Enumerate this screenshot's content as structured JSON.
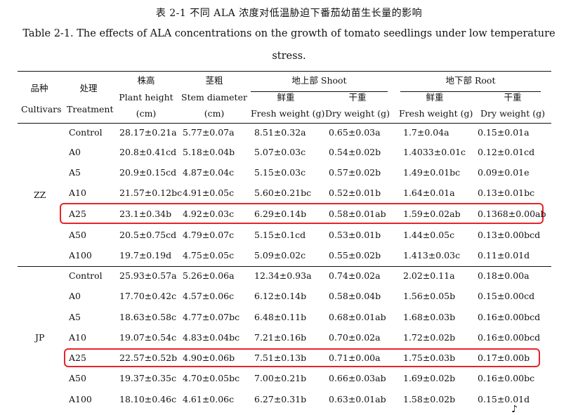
{
  "caption": {
    "chinese": "表  2-1  不同 ALA 浓度对低温胁迫下番茄幼苗生长量的影响",
    "english_line1": "Table 2-1. The effects of ALA concentrations on the growth of tomato seedlings under low temperature",
    "english_line2": "stress."
  },
  "header": {
    "cultivars_cn": "品种",
    "cultivars_en": "Cultivars",
    "treatment_cn": "处理",
    "treatment_en": "Treatment",
    "plant_height_cn": "株高",
    "plant_height_en": "Plant height",
    "plant_height_unit": "(cm)",
    "stem_diameter_cn": "茎粗",
    "stem_diameter_en": "Stem diameter",
    "stem_diameter_unit": "(cm)",
    "shoot_group": "地上部 Shoot",
    "root_group": "地下部 Root",
    "fresh_cn": "鲜重",
    "dry_cn": "干重",
    "shoot_fresh_en": "Fresh weight (g)",
    "shoot_dry_en": "Dry weight (g)",
    "root_fresh_en": "Fresh weight (g)",
    "root_dry_en": "Dry weight (g)"
  },
  "groups": [
    {
      "cultivar": "ZZ",
      "rows": [
        {
          "treatment": "Control",
          "plant_height": "28.17±0.21a",
          "stem_diameter": "5.77±0.07a",
          "shoot_fresh": "8.51±0.32a",
          "shoot_dry": "0.65±0.03a",
          "root_fresh": "1.7±0.04a",
          "root_dry": "0.15±0.01a"
        },
        {
          "treatment": "A0",
          "plant_height": "20.8±0.41cd",
          "stem_diameter": "5.18±0.04b",
          "shoot_fresh": "5.07±0.03c",
          "shoot_dry": "0.54±0.02b",
          "root_fresh": "1.4033±0.01c",
          "root_dry": "0.12±0.01cd"
        },
        {
          "treatment": "A5",
          "plant_height": "20.9±0.15cd",
          "stem_diameter": "4.87±0.04c",
          "shoot_fresh": "5.15±0.03c",
          "shoot_dry": "0.57±0.02b",
          "root_fresh": "1.49±0.01bc",
          "root_dry": "0.09±0.01e"
        },
        {
          "treatment": "A10",
          "plant_height": "21.57±0.12bc",
          "stem_diameter": "4.91±0.05c",
          "shoot_fresh": "5.60±0.21bc",
          "shoot_dry": "0.52±0.01b",
          "root_fresh": "1.64±0.01a",
          "root_dry": "0.13±0.01bc"
        },
        {
          "treatment": "A25",
          "plant_height": "23.1±0.34b",
          "stem_diameter": "4.92±0.03c",
          "shoot_fresh": "6.29±0.14b",
          "shoot_dry": "0.58±0.01ab",
          "root_fresh": "1.59±0.02ab",
          "root_dry": "0.1368±0.00ab"
        },
        {
          "treatment": "A50",
          "plant_height": "20.5±0.75cd",
          "stem_diameter": "4.79±0.07c",
          "shoot_fresh": "5.15±0.1cd",
          "shoot_dry": "0.53±0.01b",
          "root_fresh": "1.44±0.05c",
          "root_dry": "0.13±0.00bcd"
        },
        {
          "treatment": "A100",
          "plant_height": "19.7±0.19d",
          "stem_diameter": "4.75±0.05c",
          "shoot_fresh": "5.09±0.02c",
          "shoot_dry": "0.55±0.02b",
          "root_fresh": "1.413±0.03c",
          "root_dry": "0.11±0.01d"
        }
      ]
    },
    {
      "cultivar": "JP",
      "rows": [
        {
          "treatment": "Control",
          "plant_height": "25.93±0.57a",
          "stem_diameter": "5.26±0.06a",
          "shoot_fresh": "12.34±0.93a",
          "shoot_dry": "0.74±0.02a",
          "root_fresh": "2.02±0.11a",
          "root_dry": "0.18±0.00a"
        },
        {
          "treatment": "A0",
          "plant_height": "17.70±0.42c",
          "stem_diameter": "4.57±0.06c",
          "shoot_fresh": "6.12±0.14b",
          "shoot_dry": "0.58±0.04b",
          "root_fresh": "1.56±0.05b",
          "root_dry": "0.15±0.00cd"
        },
        {
          "treatment": "A5",
          "plant_height": "18.63±0.58c",
          "stem_diameter": "4.77±0.07bc",
          "shoot_fresh": "6.48±0.11b",
          "shoot_dry": "0.68±0.01ab",
          "root_fresh": "1.68±0.03b",
          "root_dry": "0.16±0.00bcd"
        },
        {
          "treatment": "A10",
          "plant_height": "19.07±0.54c",
          "stem_diameter": "4.83±0.04bc",
          "shoot_fresh": "7.21±0.16b",
          "shoot_dry": "0.70±0.02a",
          "root_fresh": "1.72±0.02b",
          "root_dry": "0.16±0.00bcd"
        },
        {
          "treatment": "A25",
          "plant_height": "22.57±0.52b",
          "stem_diameter": "4.90±0.06b",
          "shoot_fresh": "7.51±0.13b",
          "shoot_dry": "0.71±0.00a",
          "root_fresh": "1.75±0.03b",
          "root_dry": "0.17±0.00b"
        },
        {
          "treatment": "A50",
          "plant_height": "19.37±0.35c",
          "stem_diameter": "4.70±0.05bc",
          "shoot_fresh": "7.00±0.21b",
          "shoot_dry": "0.66±0.03ab",
          "root_fresh": "1.69±0.02b",
          "root_dry": "0.16±0.00bc"
        },
        {
          "treatment": "A100",
          "plant_height": "18.10±0.46c",
          "stem_diameter": "4.61±0.06c",
          "shoot_fresh": "6.27±0.31b",
          "shoot_dry": "0.63±0.01ab",
          "root_fresh": "1.58±0.02b",
          "root_dry": "0.15±0.01d"
        }
      ]
    }
  ],
  "highlighted_treatment": "A25",
  "highlight_color": "#e8242a",
  "page_corner_mark": "♪"
}
